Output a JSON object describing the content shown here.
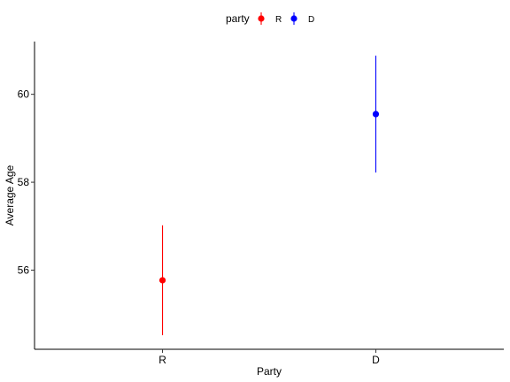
{
  "chart_data": {
    "type": "scatter",
    "xlabel": "Party",
    "ylabel": "Average Age",
    "categories": [
      "R",
      "D"
    ],
    "ylim": [
      54.2,
      61.2
    ],
    "yticks": [
      56,
      58,
      60
    ],
    "grid": false,
    "legend": {
      "title": "party",
      "placement": "top",
      "entries": [
        {
          "label": "R",
          "color": "#ff0000"
        },
        {
          "label": "D",
          "color": "#0000ff"
        }
      ]
    },
    "series": [
      {
        "category": "R",
        "mean": 55.77,
        "low": 54.52,
        "high": 57.02,
        "color": "#ff0000"
      },
      {
        "category": "D",
        "mean": 59.55,
        "low": 58.22,
        "high": 60.88,
        "color": "#0000ff"
      }
    ]
  }
}
